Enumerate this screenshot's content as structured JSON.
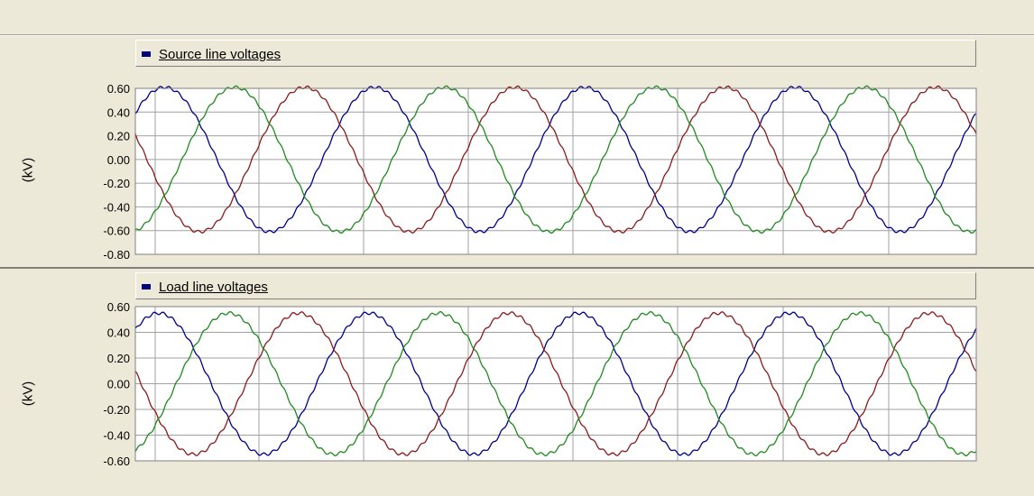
{
  "colors": {
    "phase_a": "#00008b",
    "phase_b": "#8b1a1a",
    "phase_c": "#1e8b1e",
    "grid": "#808080",
    "background": "#ffffff",
    "legend_swatch": "#000080"
  },
  "chart_data": [
    {
      "type": "line",
      "title": "Source line voltages",
      "ylabel": "(kV)",
      "ylim": [
        -0.8,
        0.6
      ],
      "yticks": [
        "0.60",
        "0.40",
        "0.20",
        "0.00",
        "-0.20",
        "-0.40",
        "-0.60",
        "-0.80"
      ],
      "grid": true,
      "legend_placement": "top",
      "cycles": 4,
      "series": [
        {
          "color_key": "phase_a",
          "amplitude": 0.61,
          "phase_deg": 40
        },
        {
          "color_key": "phase_b",
          "amplitude": 0.61,
          "phase_deg": 160
        },
        {
          "color_key": "phase_c",
          "amplitude": 0.61,
          "phase_deg": 280
        }
      ]
    },
    {
      "type": "line",
      "title": "Load line voltages",
      "ylabel": "(kV)",
      "ylim": [
        -0.6,
        0.6
      ],
      "yticks": [
        "0.60",
        "0.40",
        "0.20",
        "0.00",
        "-0.20",
        "-0.40",
        "-0.60"
      ],
      "grid": true,
      "legend_placement": "top",
      "cycles": 4,
      "series": [
        {
          "color_key": "phase_a",
          "amplitude": 0.55,
          "phase_deg": 50
        },
        {
          "color_key": "phase_b",
          "amplitude": 0.55,
          "phase_deg": 170
        },
        {
          "color_key": "phase_c",
          "amplitude": 0.55,
          "phase_deg": 290
        }
      ]
    }
  ]
}
